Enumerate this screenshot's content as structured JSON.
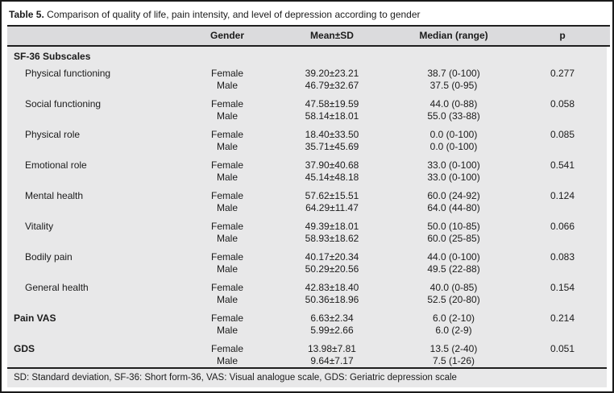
{
  "table": {
    "title_label": "Table 5.",
    "title_text": " Comparison of quality of life, pain intensity, and level of depression according to gender",
    "columns": [
      "",
      "Gender",
      "Mean±SD",
      "Median (range)",
      "p"
    ],
    "body": [
      {
        "type": "section",
        "label": "SF-36 Subscales"
      },
      {
        "type": "group",
        "label": "Physical functioning",
        "indent": true,
        "entries": [
          {
            "gender": "Female",
            "mean_sd": "39.20±23.21",
            "median_range": "38.7 (0-100)",
            "p": "0.277"
          },
          {
            "gender": "Male",
            "mean_sd": "46.79±32.67",
            "median_range": "37.5 (0-95)",
            "p": ""
          }
        ]
      },
      {
        "type": "group",
        "label": "Social functioning",
        "indent": true,
        "entries": [
          {
            "gender": "Female",
            "mean_sd": "47.58±19.59",
            "median_range": "44.0 (0-88)",
            "p": "0.058"
          },
          {
            "gender": "Male",
            "mean_sd": "58.14±18.01",
            "median_range": "55.0 (33-88)",
            "p": ""
          }
        ]
      },
      {
        "type": "group",
        "label": "Physical role",
        "indent": true,
        "entries": [
          {
            "gender": "Female",
            "mean_sd": "18.40±33.50",
            "median_range": "0.0 (0-100)",
            "p": "0.085"
          },
          {
            "gender": "Male",
            "mean_sd": "35.71±45.69",
            "median_range": "0.0 (0-100)",
            "p": ""
          }
        ]
      },
      {
        "type": "group",
        "label": "Emotional role",
        "indent": true,
        "entries": [
          {
            "gender": "Female",
            "mean_sd": "37.90±40.68",
            "median_range": "33.0 (0-100)",
            "p": "0.541"
          },
          {
            "gender": "Male",
            "mean_sd": "45.14±48.18",
            "median_range": "33.0 (0-100)",
            "p": ""
          }
        ]
      },
      {
        "type": "group",
        "label": "Mental health",
        "indent": true,
        "entries": [
          {
            "gender": "Female",
            "mean_sd": "57.62±15.51",
            "median_range": "60.0 (24-92)",
            "p": "0.124"
          },
          {
            "gender": "Male",
            "mean_sd": "64.29±11.47",
            "median_range": "64.0 (44-80)",
            "p": ""
          }
        ]
      },
      {
        "type": "group",
        "label": "Vitality",
        "indent": true,
        "entries": [
          {
            "gender": "Female",
            "mean_sd": "49.39±18.01",
            "median_range": "50.0 (10-85)",
            "p": "0.066"
          },
          {
            "gender": "Male",
            "mean_sd": "58.93±18.62",
            "median_range": "60.0 (25-85)",
            "p": ""
          }
        ]
      },
      {
        "type": "group",
        "label": "Bodily pain",
        "indent": true,
        "entries": [
          {
            "gender": "Female",
            "mean_sd": "40.17±20.34",
            "median_range": "44.0 (0-100)",
            "p": "0.083"
          },
          {
            "gender": "Male",
            "mean_sd": "50.29±20.56",
            "median_range": "49.5 (22-88)",
            "p": ""
          }
        ]
      },
      {
        "type": "group",
        "label": "General health",
        "indent": true,
        "entries": [
          {
            "gender": "Female",
            "mean_sd": "42.83±18.40",
            "median_range": "40.0 (0-85)",
            "p": "0.154"
          },
          {
            "gender": "Male",
            "mean_sd": "50.36±18.96",
            "median_range": "52.5 (20-80)",
            "p": ""
          }
        ]
      },
      {
        "type": "group",
        "label": "Pain VAS",
        "indent": false,
        "entries": [
          {
            "gender": "Female",
            "mean_sd": "6.63±2.34",
            "median_range": "6.0 (2-10)",
            "p": "0.214"
          },
          {
            "gender": "Male",
            "mean_sd": "5.99±2.66",
            "median_range": "6.0 (2-9)",
            "p": ""
          }
        ]
      },
      {
        "type": "group",
        "label": "GDS",
        "indent": false,
        "entries": [
          {
            "gender": "Female",
            "mean_sd": "13.98±7.81",
            "median_range": "13.5 (2-40)",
            "p": "0.051"
          },
          {
            "gender": "Male",
            "mean_sd": "9.64±7.17",
            "median_range": "7.5 (1-26)",
            "p": ""
          }
        ]
      }
    ],
    "footnote": "SD: Standard deviation, SF-36: Short form-36, VAS: Visual analogue scale, GDS: Geriatric depression scale"
  }
}
